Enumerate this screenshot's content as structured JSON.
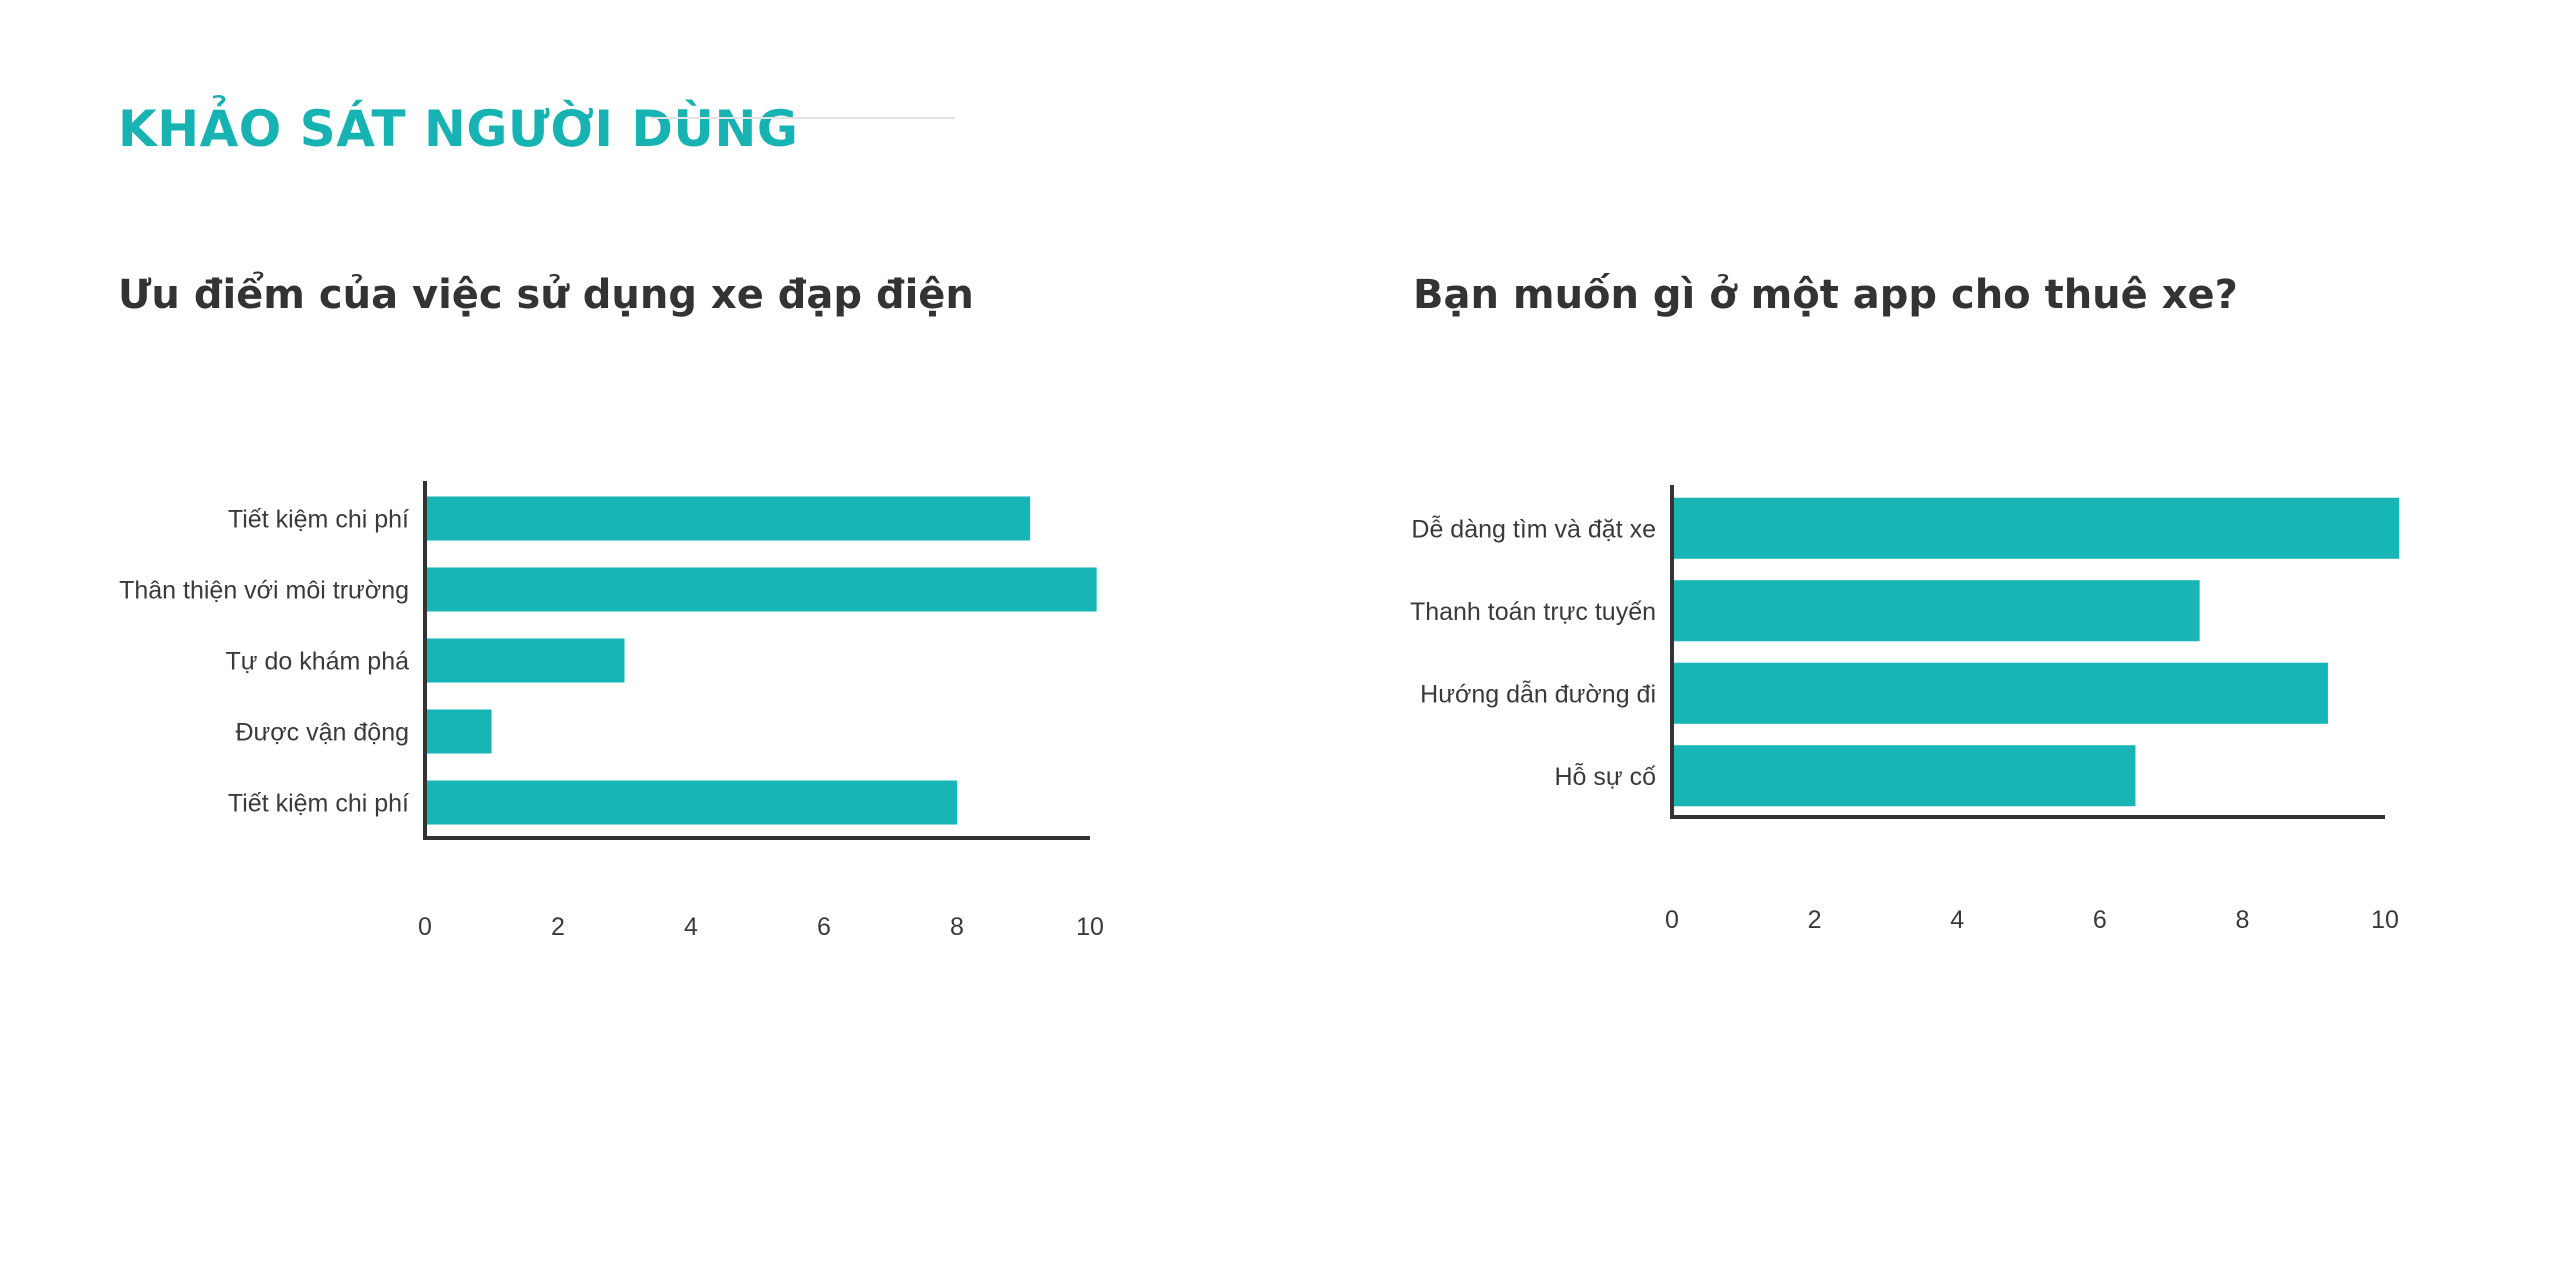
{
  "header": {
    "title": "KHẢO SÁT NGƯỜI DÙNG"
  },
  "colors": {
    "accent": "#17b3b3",
    "bar": "#17b5b5",
    "axis": "#333333",
    "text": "#3a3a3a"
  },
  "chart_data": [
    {
      "type": "bar",
      "orientation": "horizontal",
      "title": "Ưu điểm của việc sử dụng xe đạp điện",
      "xlabel": "",
      "ylabel": "",
      "categories": [
        "Tiết kiệm chi phí",
        "Thân thiện với môi trường",
        "Tự do khám phá",
        "Được vận động",
        "Tiết kiệm chi phí"
      ],
      "values": [
        9.1,
        10.1,
        3.0,
        1.0,
        8.0
      ],
      "xlim": [
        0,
        10
      ],
      "xticks": [
        "0",
        "2",
        "4",
        "6",
        "8",
        "10"
      ],
      "grid": false,
      "legend": "none"
    },
    {
      "type": "bar",
      "orientation": "horizontal",
      "title": "Bạn muốn gì ở một app cho thuê xe?",
      "xlabel": "",
      "ylabel": "",
      "categories": [
        "Dễ dàng tìm và đặt xe",
        "Thanh toán trực tuyến",
        "Hướng dẫn đường đi",
        "Hỗ sự cố"
      ],
      "values": [
        10.2,
        7.4,
        9.2,
        6.5
      ],
      "xlim": [
        0,
        10
      ],
      "xticks": [
        "0",
        "2",
        "4",
        "6",
        "8",
        "10"
      ],
      "grid": false,
      "legend": "none"
    }
  ]
}
